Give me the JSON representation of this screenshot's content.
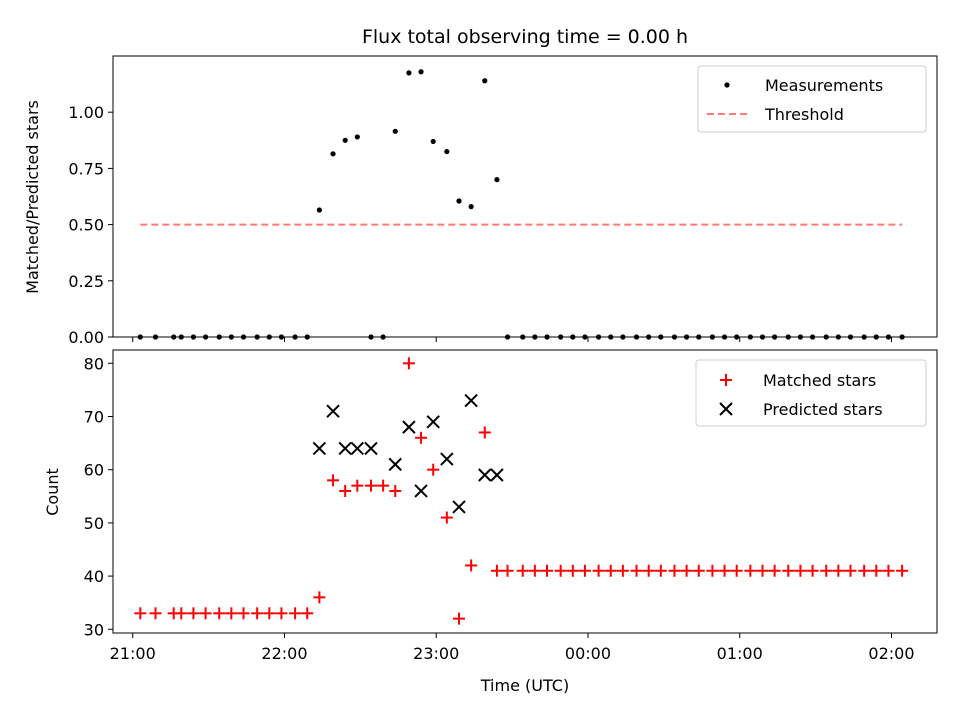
{
  "chart_data": [
    {
      "type": "scatter",
      "title": "Flux total observing time = 0.00 h",
      "xlabel": "",
      "ylabel": "Matched/Predicted stars",
      "xlim_hours": [
        20.87,
        26.3
      ],
      "ylim": [
        0.0,
        1.25
      ],
      "yticks": [
        0.0,
        0.25,
        0.5,
        0.75,
        1.0
      ],
      "ytick_labels": [
        "0.00",
        "0.25",
        "0.50",
        "0.75",
        "1.00"
      ],
      "xticks_hours": [
        21,
        22,
        23,
        24,
        25,
        26
      ],
      "legend_position": "top-right",
      "legend": [
        "Measurements",
        "Threshold"
      ],
      "threshold": {
        "name": "Threshold",
        "value": 0.5,
        "x_start": 21.05,
        "x_end": 26.07,
        "color": "#ff7777",
        "style": "dashed"
      },
      "series": [
        {
          "name": "Measurements",
          "color": "#000000",
          "marker": "dot",
          "x": [
            21.05,
            21.15,
            21.27,
            21.32,
            21.4,
            21.48,
            21.57,
            21.65,
            21.73,
            21.82,
            21.9,
            21.98,
            22.07,
            22.15,
            22.23,
            22.32,
            22.4,
            22.48,
            22.57,
            22.65,
            22.73,
            22.82,
            22.9,
            22.98,
            23.07,
            23.15,
            23.23,
            23.32,
            23.4,
            23.47,
            23.57,
            23.65,
            23.73,
            23.82,
            23.9,
            23.98,
            24.07,
            24.15,
            24.23,
            24.32,
            24.4,
            24.48,
            24.57,
            24.65,
            24.73,
            24.82,
            24.9,
            24.98,
            25.07,
            25.15,
            25.23,
            25.32,
            25.4,
            25.48,
            25.57,
            25.65,
            25.73,
            25.82,
            25.9,
            25.98,
            26.07
          ],
          "y": [
            0.0,
            0.0,
            0.0,
            0.0,
            0.0,
            0.0,
            0.0,
            0.0,
            0.0,
            0.0,
            0.0,
            0.0,
            0.0,
            0.0,
            0.565,
            0.815,
            0.875,
            0.89,
            0.0,
            0.0,
            0.915,
            1.175,
            1.18,
            0.87,
            0.825,
            0.605,
            0.58,
            1.14,
            0.7,
            0.0,
            0.0,
            0.0,
            0.0,
            0.0,
            0.0,
            0.0,
            0.0,
            0.0,
            0.0,
            0.0,
            0.0,
            0.0,
            0.0,
            0.0,
            0.0,
            0.0,
            0.0,
            0.0,
            0.0,
            0.0,
            0.0,
            0.0,
            0.0,
            0.0,
            0.0,
            0.0,
            0.0,
            0.0,
            0.0,
            0.0,
            0.0
          ]
        }
      ]
    },
    {
      "type": "scatter",
      "title": "",
      "xlabel": "Time (UTC)",
      "ylabel": "Count",
      "xlim_hours": [
        20.87,
        26.3
      ],
      "ylim": [
        29.3,
        82.5
      ],
      "yticks": [
        30,
        40,
        50,
        60,
        70,
        80
      ],
      "ytick_labels": [
        "30",
        "40",
        "50",
        "60",
        "70",
        "80"
      ],
      "xticks_hours": [
        21,
        22,
        23,
        24,
        25,
        26
      ],
      "xtick_labels": [
        "21:00",
        "22:00",
        "23:00",
        "00:00",
        "01:00",
        "02:00"
      ],
      "legend_position": "top-right",
      "legend": [
        "Matched stars",
        "Predicted stars"
      ],
      "series": [
        {
          "name": "Matched stars",
          "color": "#ff0000",
          "marker": "plus",
          "x": [
            21.05,
            21.15,
            21.27,
            21.32,
            21.4,
            21.48,
            21.57,
            21.65,
            21.73,
            21.82,
            21.9,
            21.98,
            22.07,
            22.15,
            22.23,
            22.32,
            22.4,
            22.48,
            22.57,
            22.65,
            22.73,
            22.82,
            22.9,
            22.98,
            23.07,
            23.15,
            23.23,
            23.32,
            23.4,
            23.47,
            23.57,
            23.65,
            23.73,
            23.82,
            23.9,
            23.98,
            24.07,
            24.15,
            24.23,
            24.32,
            24.4,
            24.48,
            24.57,
            24.65,
            24.73,
            24.82,
            24.9,
            24.98,
            25.07,
            25.15,
            25.23,
            25.32,
            25.4,
            25.48,
            25.57,
            25.65,
            25.73,
            25.82,
            25.9,
            25.98,
            26.07
          ],
          "y": [
            33,
            33,
            33,
            33,
            33,
            33,
            33,
            33,
            33,
            33,
            33,
            33,
            33,
            33,
            36,
            58,
            56,
            57,
            57,
            57,
            56,
            80,
            66,
            60,
            51,
            32,
            42,
            67,
            41,
            41,
            41,
            41,
            41,
            41,
            41,
            41,
            41,
            41,
            41,
            41,
            41,
            41,
            41,
            41,
            41,
            41,
            41,
            41,
            41,
            41,
            41,
            41,
            41,
            41,
            41,
            41,
            41,
            41,
            41,
            41,
            41
          ]
        },
        {
          "name": "Predicted stars",
          "color": "#000000",
          "marker": "x",
          "x": [
            22.23,
            22.32,
            22.4,
            22.48,
            22.57,
            22.73,
            22.82,
            22.9,
            22.98,
            23.07,
            23.15,
            23.23,
            23.32,
            23.4
          ],
          "y": [
            64,
            71,
            64,
            64,
            64,
            61,
            68,
            56,
            69,
            62,
            53,
            73,
            59,
            59
          ]
        }
      ]
    }
  ]
}
